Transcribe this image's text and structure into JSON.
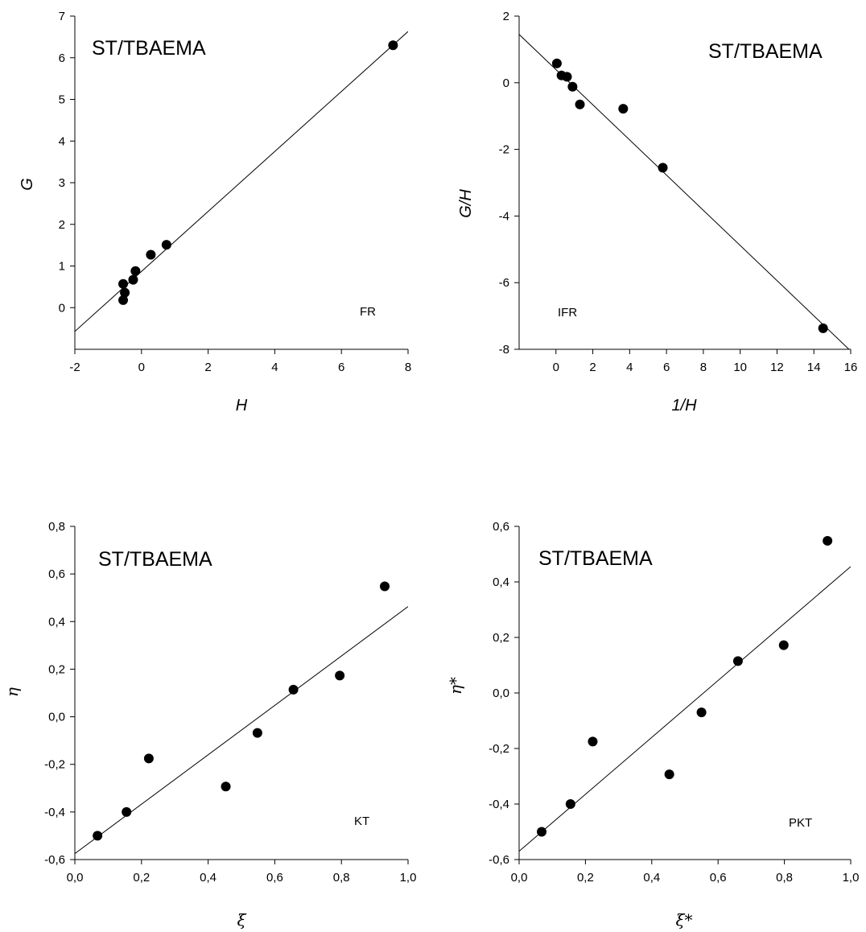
{
  "chart_data": [
    {
      "type": "scatter",
      "title": "ST/TBAEMA",
      "annotation": "FR",
      "xlabel": "H",
      "ylabel": "G",
      "xlim": [
        -2,
        8
      ],
      "ylim": [
        -1,
        7
      ],
      "xticks": [
        -2,
        0,
        2,
        4,
        6,
        8
      ],
      "yticks": [
        0,
        1,
        2,
        3,
        4,
        5,
        6,
        7
      ],
      "xtick_labels": [
        "-2",
        "0",
        "2",
        "4",
        "6",
        "8"
      ],
      "ytick_labels": [
        "0",
        "1",
        "2",
        "3",
        "4",
        "5",
        "6",
        "7"
      ],
      "points": [
        {
          "x": -0.55,
          "y": 0.57
        },
        {
          "x": -0.55,
          "y": 0.18
        },
        {
          "x": -0.5,
          "y": 0.36
        },
        {
          "x": -0.25,
          "y": 0.67
        },
        {
          "x": -0.18,
          "y": 0.88
        },
        {
          "x": 0.28,
          "y": 1.27
        },
        {
          "x": 0.75,
          "y": 1.51
        },
        {
          "x": 7.55,
          "y": 6.3
        }
      ],
      "fit_line": {
        "x": [
          -2,
          8
        ],
        "y": [
          -0.57,
          6.63
        ]
      }
    },
    {
      "type": "scatter",
      "title": "ST/TBAEMA",
      "annotation": "IFR",
      "xlabel": "1/H",
      "ylabel": "G/H",
      "xlim": [
        -2,
        16
      ],
      "ylim": [
        -8,
        2
      ],
      "xticks": [
        0,
        2,
        4,
        6,
        8,
        10,
        12,
        14,
        16
      ],
      "yticks": [
        -8,
        -6,
        -4,
        -2,
        0,
        2
      ],
      "xtick_labels": [
        "0",
        "2",
        "4",
        "6",
        "8",
        "10",
        "12",
        "14",
        "16"
      ],
      "ytick_labels": [
        "-8",
        "-6",
        "-4",
        "-2",
        "0",
        "2"
      ],
      "points": [
        {
          "x": 0.05,
          "y": 0.58
        },
        {
          "x": 0.3,
          "y": 0.22
        },
        {
          "x": 0.6,
          "y": 0.18
        },
        {
          "x": 0.9,
          "y": -0.12
        },
        {
          "x": 1.3,
          "y": -0.65
        },
        {
          "x": 3.65,
          "y": -0.78
        },
        {
          "x": 5.8,
          "y": -2.55
        },
        {
          "x": 14.5,
          "y": -7.37
        }
      ],
      "fit_line": {
        "x": [
          -2,
          16
        ],
        "y": [
          1.45,
          -8.05
        ]
      }
    },
    {
      "type": "scatter",
      "title": "ST/TBAEMA",
      "annotation": "KT",
      "xlabel": "ξ",
      "ylabel": "η",
      "xlim": [
        0,
        1
      ],
      "ylim": [
        -0.6,
        0.8
      ],
      "xticks": [
        0,
        0.2,
        0.4,
        0.6,
        0.8,
        1.0
      ],
      "yticks": [
        -0.6,
        -0.4,
        -0.2,
        0,
        0.2,
        0.4,
        0.6,
        0.8
      ],
      "xtick_labels": [
        "0,0",
        "0,2",
        "0,4",
        "0,6",
        "0,8",
        "1,0"
      ],
      "ytick_labels": [
        "-0,6",
        "-0,4",
        "-0,2",
        "0,0",
        "0,2",
        "0,4",
        "0,6",
        "0,8"
      ],
      "points": [
        {
          "x": 0.068,
          "y": -0.5
        },
        {
          "x": 0.155,
          "y": -0.4
        },
        {
          "x": 0.222,
          "y": -0.175
        },
        {
          "x": 0.453,
          "y": -0.293
        },
        {
          "x": 0.548,
          "y": -0.068
        },
        {
          "x": 0.656,
          "y": 0.114
        },
        {
          "x": 0.795,
          "y": 0.173
        },
        {
          "x": 0.93,
          "y": 0.548
        }
      ],
      "fit_line": {
        "x": [
          0,
          1
        ],
        "y": [
          -0.575,
          0.463
        ]
      }
    },
    {
      "type": "scatter",
      "title": "ST/TBAEMA",
      "annotation": "PKT",
      "xlabel": "ξ*",
      "ylabel": "η*",
      "xlim": [
        0,
        1
      ],
      "ylim": [
        -0.6,
        0.6
      ],
      "xticks": [
        0,
        0.2,
        0.4,
        0.6,
        0.8,
        1.0
      ],
      "yticks": [
        -0.6,
        -0.4,
        -0.2,
        0,
        0.2,
        0.4,
        0.6
      ],
      "xtick_labels": [
        "0,0",
        "0,2",
        "0,4",
        "0,6",
        "0,8",
        "1,0"
      ],
      "ytick_labels": [
        "-0,6",
        "-0,4",
        "-0,2",
        "0,0",
        "0,2",
        "0,4",
        "0,6"
      ],
      "points": [
        {
          "x": 0.068,
          "y": -0.5
        },
        {
          "x": 0.155,
          "y": -0.4
        },
        {
          "x": 0.222,
          "y": -0.175
        },
        {
          "x": 0.453,
          "y": -0.293
        },
        {
          "x": 0.55,
          "y": -0.07
        },
        {
          "x": 0.66,
          "y": 0.115
        },
        {
          "x": 0.798,
          "y": 0.172
        },
        {
          "x": 0.93,
          "y": 0.548
        }
      ],
      "fit_line": {
        "x": [
          0,
          1
        ],
        "y": [
          -0.57,
          0.455
        ]
      }
    }
  ]
}
